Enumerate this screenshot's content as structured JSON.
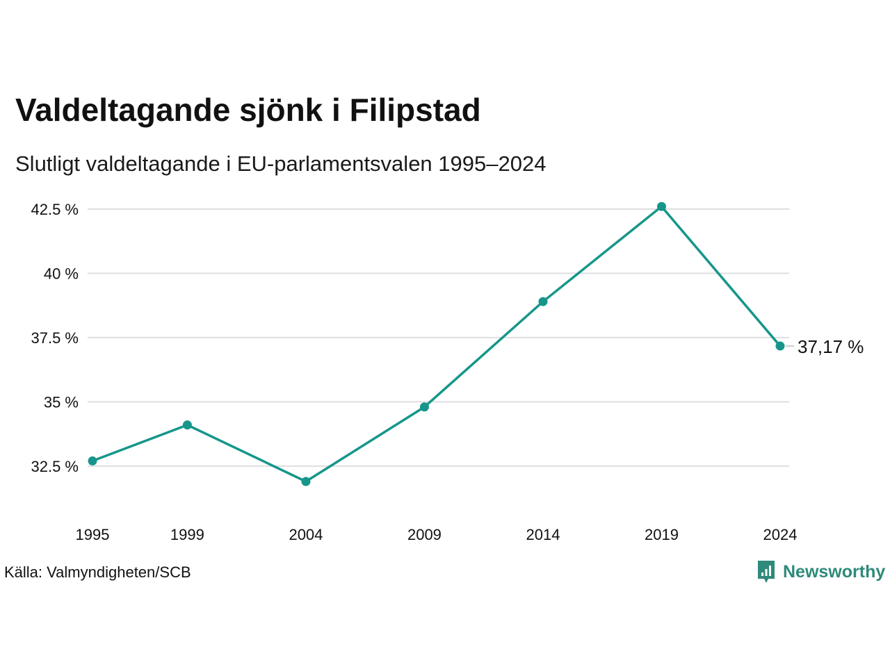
{
  "title": "Valdeltagande sjönk i Filipstad",
  "subtitle": "Slutligt valdeltagande i EU-parlamentsvalen 1995–2024",
  "source": "Källa: Valmyndigheten/SCB",
  "brand": {
    "name": "Newsworthy",
    "icon": "newsworthy-logo-icon"
  },
  "colors": {
    "line": "#16968a",
    "grid": "#dedee3",
    "brand": "#2e8a7a",
    "text": "#111111"
  },
  "chart_data": {
    "type": "line",
    "title": "Valdeltagande sjönk i Filipstad",
    "subtitle": "Slutligt valdeltagande i EU-parlamentsvalen 1995–2024",
    "xlabel": "",
    "ylabel": "",
    "categories": [
      "1995",
      "1999",
      "2004",
      "2009",
      "2014",
      "2019",
      "2024"
    ],
    "series": [
      {
        "values": [
          32.7,
          34.1,
          31.9,
          34.8,
          38.9,
          42.6,
          37.17
        ]
      }
    ],
    "yticks": [
      {
        "value": 42.5,
        "label": "42.5 %"
      },
      {
        "value": 40,
        "label": "40 %"
      },
      {
        "value": 37.5,
        "label": "37.5 %"
      },
      {
        "value": 35,
        "label": "35 %"
      },
      {
        "value": 32.5,
        "label": "32.5 %"
      }
    ],
    "ylim": [
      30.9,
      43.2
    ],
    "grid": true,
    "legend": "none",
    "end_label": "37,17 %"
  }
}
